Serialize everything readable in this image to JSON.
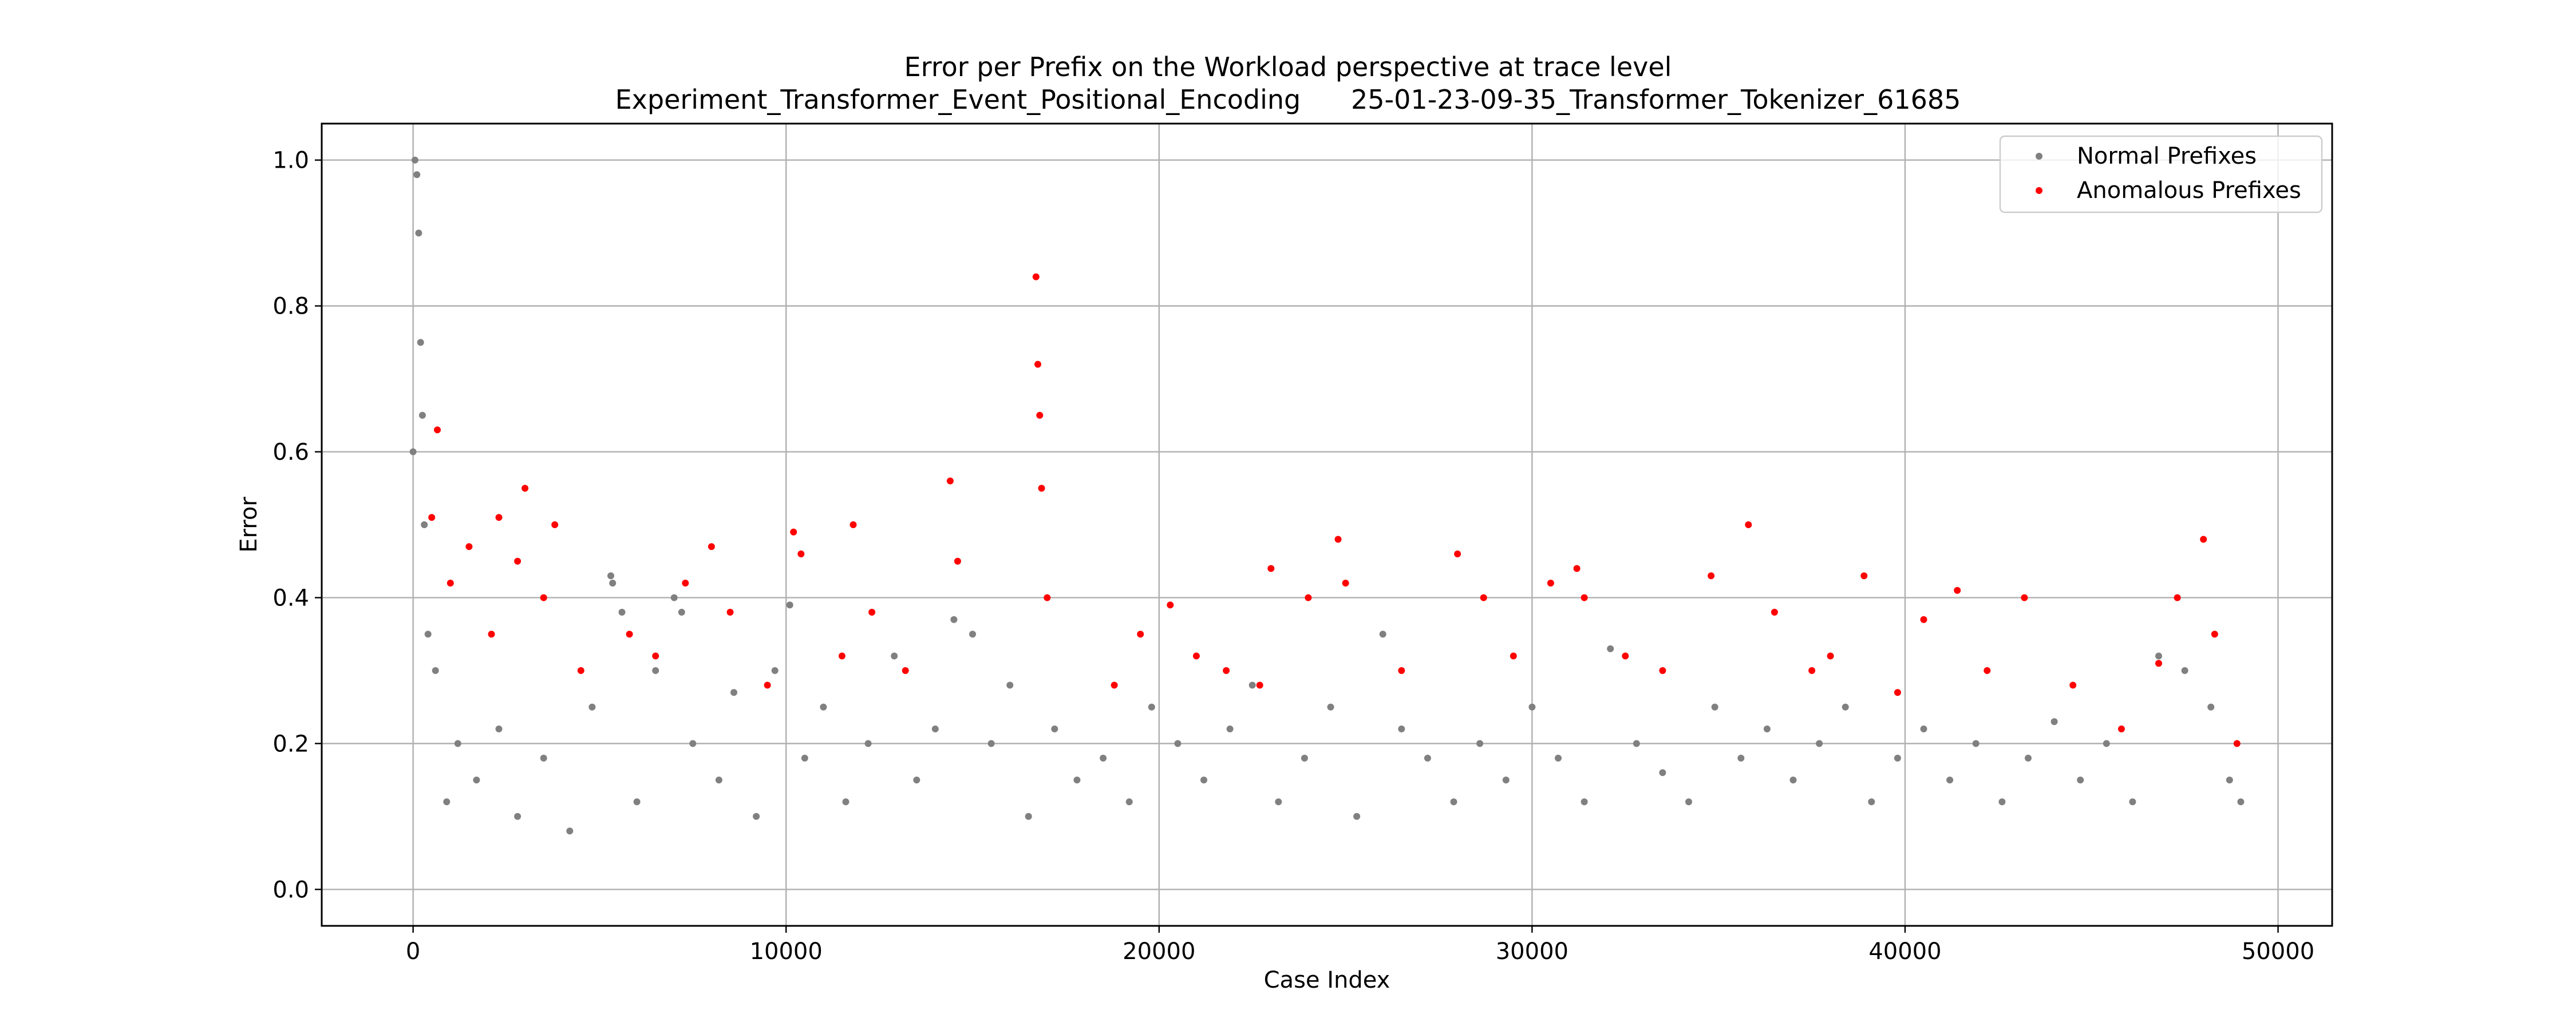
{
  "chart_data": {
    "type": "scatter",
    "title": "Error per Prefix on the Workload perspective at trace level",
    "subtitle": "Experiment_Transformer_Event_Positional_Encoding      25-01-23-09-35_Transformer_Tokenizer_61685",
    "xlabel": "Case Index",
    "ylabel": "Error",
    "xlim": [
      -2450,
      51450
    ],
    "ylim": [
      -0.05,
      1.05
    ],
    "xticks": [
      0,
      10000,
      20000,
      30000,
      40000,
      50000
    ],
    "xtick_labels": [
      "0",
      "10000",
      "20000",
      "30000",
      "40000",
      "50000"
    ],
    "yticks": [
      0.0,
      0.2,
      0.4,
      0.6,
      0.8,
      1.0
    ],
    "ytick_labels": [
      "0.0",
      "0.2",
      "0.4",
      "0.6",
      "0.8",
      "1.0"
    ],
    "grid": true,
    "legend_position": "top-right",
    "series": [
      {
        "name": "Normal Prefixes",
        "color": "#808080",
        "x": [
          0,
          50,
          100,
          150,
          200,
          250,
          300,
          400,
          600,
          900,
          1200,
          1700,
          2300,
          2800,
          3500,
          4200,
          4800,
          5300,
          5350,
          5600,
          6000,
          6500,
          7000,
          7200,
          7500,
          8200,
          8600,
          9200,
          9700,
          10100,
          10500,
          11000,
          11600,
          12200,
          12900,
          13500,
          14000,
          14500,
          15000,
          15500,
          16000,
          16500,
          17200,
          17800,
          18500,
          19200,
          19800,
          20500,
          21200,
          21900,
          22500,
          23200,
          23900,
          24600,
          25300,
          26000,
          26500,
          27200,
          27900,
          28600,
          29300,
          30000,
          30700,
          31400,
          32100,
          32800,
          33500,
          34200,
          34900,
          35600,
          36300,
          37000,
          37700,
          38400,
          39100,
          39800,
          40500,
          41200,
          41900,
          42600,
          43300,
          44000,
          44700,
          45400,
          46100,
          46800,
          47500,
          48200,
          48700,
          49000
        ],
        "y": [
          0.6,
          1.0,
          0.98,
          0.9,
          0.75,
          0.65,
          0.5,
          0.35,
          0.3,
          0.12,
          0.2,
          0.15,
          0.22,
          0.1,
          0.18,
          0.08,
          0.25,
          0.43,
          0.42,
          0.38,
          0.12,
          0.3,
          0.4,
          0.38,
          0.2,
          0.15,
          0.27,
          0.1,
          0.3,
          0.39,
          0.18,
          0.25,
          0.12,
          0.2,
          0.32,
          0.15,
          0.22,
          0.37,
          0.35,
          0.2,
          0.28,
          0.1,
          0.22,
          0.15,
          0.18,
          0.12,
          0.25,
          0.2,
          0.15,
          0.22,
          0.28,
          0.12,
          0.18,
          0.25,
          0.1,
          0.35,
          0.22,
          0.18,
          0.12,
          0.2,
          0.15,
          0.25,
          0.18,
          0.12,
          0.33,
          0.2,
          0.16,
          0.12,
          0.25,
          0.18,
          0.22,
          0.15,
          0.2,
          0.25,
          0.12,
          0.18,
          0.22,
          0.15,
          0.2,
          0.12,
          0.18,
          0.23,
          0.15,
          0.2,
          0.12,
          0.32,
          0.3,
          0.25,
          0.15,
          0.12
        ]
      },
      {
        "name": "Anomalous Prefixes",
        "color": "#ff0000",
        "x": [
          500,
          650,
          1000,
          1500,
          2100,
          2300,
          2800,
          3000,
          3500,
          3800,
          4500,
          5800,
          6500,
          7300,
          8000,
          8500,
          9500,
          10200,
          10400,
          11500,
          11800,
          12300,
          13200,
          14400,
          14600,
          16700,
          16750,
          16800,
          16850,
          17000,
          18800,
          19500,
          20300,
          21000,
          21800,
          22700,
          23000,
          24000,
          24800,
          25000,
          26500,
          28000,
          28700,
          29500,
          30500,
          31200,
          31400,
          32500,
          33500,
          34800,
          35800,
          36500,
          37500,
          38000,
          38900,
          39800,
          40500,
          41400,
          42200,
          43200,
          44500,
          45800,
          46800,
          47300,
          48000,
          48300,
          48900
        ],
        "y": [
          0.51,
          0.63,
          0.42,
          0.47,
          0.35,
          0.51,
          0.45,
          0.55,
          0.4,
          0.5,
          0.3,
          0.35,
          0.32,
          0.42,
          0.47,
          0.38,
          0.28,
          0.49,
          0.46,
          0.32,
          0.5,
          0.38,
          0.3,
          0.56,
          0.45,
          0.84,
          0.72,
          0.65,
          0.55,
          0.4,
          0.28,
          0.35,
          0.39,
          0.32,
          0.3,
          0.28,
          0.44,
          0.4,
          0.48,
          0.42,
          0.3,
          0.46,
          0.4,
          0.32,
          0.42,
          0.44,
          0.4,
          0.32,
          0.3,
          0.43,
          0.5,
          0.38,
          0.3,
          0.32,
          0.43,
          0.27,
          0.37,
          0.41,
          0.3,
          0.4,
          0.28,
          0.22,
          0.31,
          0.4,
          0.48,
          0.35,
          0.2
        ]
      }
    ]
  }
}
